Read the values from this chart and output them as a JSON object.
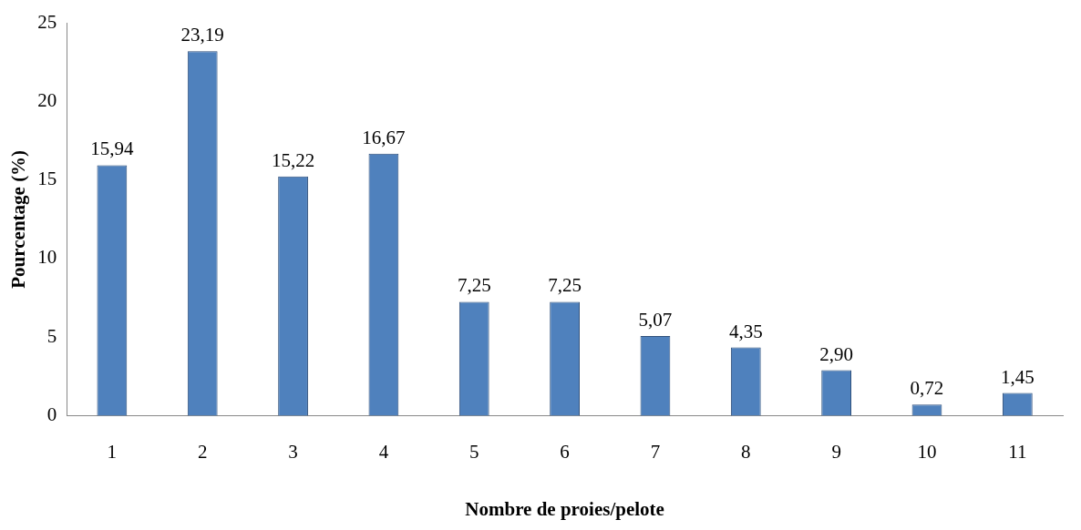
{
  "chart_data": {
    "type": "bar",
    "xlabel": "Nombre de proies/pelote",
    "ylabel": "Pourcentage (%)",
    "categories": [
      "1",
      "2",
      "3",
      "4",
      "5",
      "6",
      "7",
      "8",
      "9",
      "10",
      "11"
    ],
    "values": [
      15.94,
      23.19,
      15.22,
      16.67,
      7.25,
      7.25,
      5.07,
      4.35,
      2.9,
      0.72,
      1.45
    ],
    "value_labels": [
      "15,94",
      "23,19",
      "15,22",
      "16,67",
      "7,25",
      "7,25",
      "5,07",
      "4,35",
      "2,90",
      "0,72",
      "1,45"
    ],
    "color": "#4f81bd",
    "ylim": [
      0,
      25
    ],
    "yticks": [
      0,
      5,
      10,
      15,
      20,
      25
    ],
    "grid": false,
    "legend": false
  }
}
